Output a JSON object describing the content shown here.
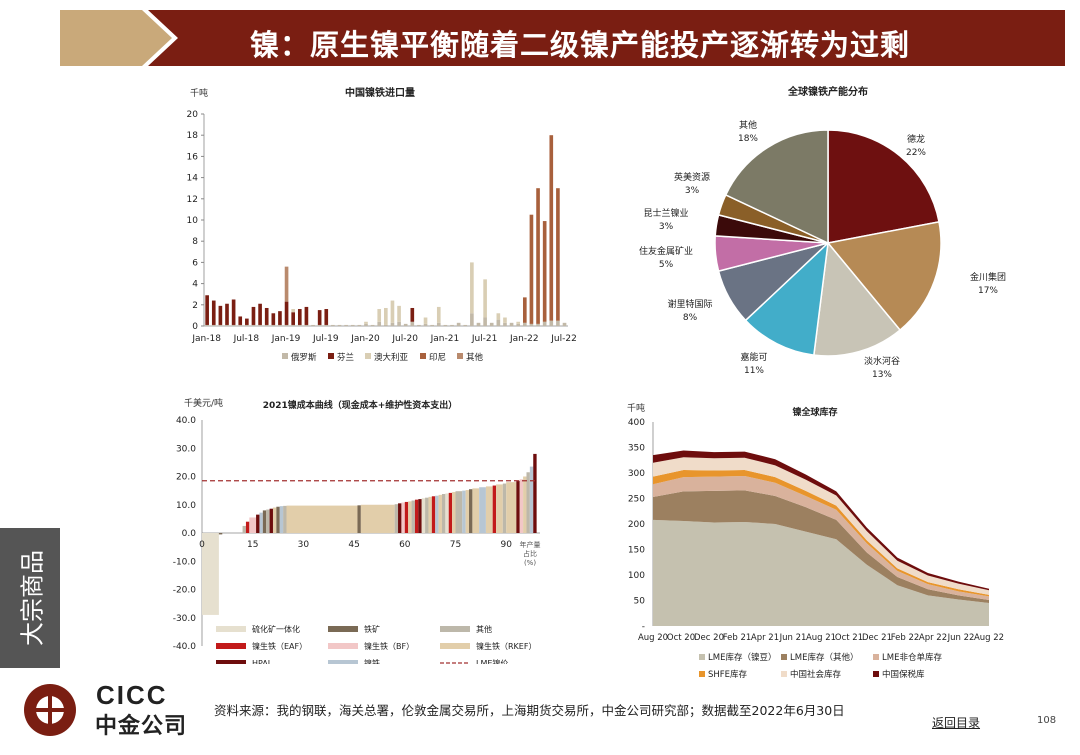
{
  "header": {
    "title": "镍：原生镍平衡随着二级镍产能投产逐渐转为过剩",
    "colors": {
      "bar": "#7a1e12",
      "arrow": "#c9a97a"
    }
  },
  "side_label": "大宗商品",
  "logo": {
    "en": "CICC",
    "cn": "中金公司"
  },
  "footer": {
    "source": "资料来源：我的钢联，海关总署，伦敦金属交易所，上海期货交易所，中金公司研究部；数据截至2022年6月30日",
    "back": "返回目录",
    "page": "108"
  },
  "chart_data": [
    {
      "type": "bar",
      "stacked": true,
      "title": "中国镍铁进口量",
      "ylabel": "千吨",
      "ylim": [
        0,
        20
      ],
      "yticks": [
        "0",
        "2",
        "4",
        "6",
        "8",
        "10",
        "12",
        "14",
        "16",
        "18",
        "20"
      ],
      "xticks": [
        "Jan-18",
        "Jul-18",
        "Jan-19",
        "Jul-19",
        "Jan-20",
        "Jul-20",
        "Jan-21",
        "Jul-21",
        "Jan-22",
        "Jul-22"
      ],
      "series": [
        {
          "name": "俄罗斯",
          "color": "#c2b9a8",
          "values": [
            0.1,
            0.1,
            0.1,
            0.1,
            0.1,
            0.1,
            0.1,
            0.1,
            0.1,
            0.1,
            0.1,
            0.1,
            0.1,
            0.1,
            0.1,
            0.1,
            0.1,
            0.1,
            0.1,
            0.1,
            0.1,
            0.1,
            0.1,
            0.1,
            0.2,
            0.1,
            0.4,
            0.1,
            0.3,
            0.4,
            0.2,
            0.4,
            0.1,
            0.2,
            0.1,
            0.3,
            0.1,
            0.1,
            0.3,
            0.1,
            1.2,
            0.3,
            0.8,
            0.3,
            0.6,
            0.3,
            0.3,
            0.2,
            0.3,
            0.2,
            0.2,
            0.4,
            0.5,
            0.5,
            0.3
          ]
        },
        {
          "name": "芬兰",
          "color": "#7a1e12",
          "values": [
            2.8,
            2.3,
            1.8,
            2.0,
            2.4,
            0.8,
            0.6,
            1.7,
            2.0,
            1.6,
            1.1,
            1.3,
            2.2,
            1.2,
            1.5,
            1.7,
            0.0,
            1.4,
            1.5,
            0.0,
            0.0,
            0.0,
            0.0,
            0.0,
            0.0,
            0.0,
            0.0,
            0.0,
            0.0,
            0.0,
            0.0,
            1.3,
            0.0,
            0.0,
            0.0,
            0.0,
            0.0,
            0.0,
            0.0,
            0.0,
            0.0,
            0.0,
            0.0,
            0.0,
            0.0,
            0.0,
            0.0,
            0.0,
            0.0,
            0.0,
            0.0,
            0.0,
            0.0,
            0.0,
            0.0
          ]
        },
        {
          "name": "澳大利亚",
          "color": "#d9ceb4",
          "values": [
            0.0,
            0.0,
            0.0,
            0.0,
            0.0,
            0.0,
            0.0,
            0.0,
            0.0,
            0.0,
            0.0,
            0.0,
            0.0,
            0.3,
            0.0,
            0.0,
            0.0,
            0.0,
            0.0,
            0.0,
            0.0,
            0.0,
            0.0,
            0.0,
            0.2,
            0.0,
            1.2,
            1.6,
            2.1,
            1.5,
            0.0,
            0.0,
            0.0,
            0.6,
            0.0,
            1.5,
            0.0,
            0.0,
            0.0,
            0.0,
            4.8,
            0.0,
            3.6,
            0.0,
            0.6,
            0.5,
            0.0,
            0.2,
            0.0,
            0.0,
            0.0,
            0.0,
            0.0,
            0.0,
            0.0
          ]
        },
        {
          "name": "印尼",
          "color": "#a8603c",
          "values": [
            0.0,
            0.0,
            0.0,
            0.0,
            0.0,
            0.0,
            0.0,
            0.0,
            0.0,
            0.0,
            0.0,
            0.0,
            0.0,
            0.0,
            0.0,
            0.0,
            0.0,
            0.0,
            0.0,
            0.0,
            0.0,
            0.0,
            0.0,
            0.0,
            0.0,
            0.0,
            0.0,
            0.0,
            0.0,
            0.0,
            0.0,
            0.0,
            0.0,
            0.0,
            0.0,
            0.0,
            0.0,
            0.0,
            0.0,
            0.0,
            0.0,
            0.0,
            0.0,
            0.0,
            0.0,
            0.0,
            0.0,
            0.0,
            2.4,
            10.3,
            12.8,
            9.5,
            17.5,
            12.5,
            0.0
          ]
        },
        {
          "name": "其他",
          "color": "#b98a6d",
          "values": [
            0.0,
            0.0,
            0.0,
            0.0,
            0.0,
            0.0,
            0.0,
            0.0,
            0.0,
            0.0,
            0.0,
            0.0,
            3.3,
            0.0,
            0.0,
            0.0,
            0.0,
            0.0,
            0.0,
            0.0,
            0.0,
            0.0,
            0.0,
            0.0,
            0.0,
            0.0,
            0.0,
            0.0,
            0.0,
            0.0,
            0.0,
            0.0,
            0.0,
            0.0,
            0.0,
            0.0,
            0.0,
            0.0,
            0.0,
            0.0,
            0.0,
            0.0,
            0.0,
            0.0,
            0.0,
            0.0,
            0.0,
            0.0,
            0.0,
            0.0,
            0.0,
            0.0,
            0.0,
            0.0,
            0.0
          ]
        }
      ]
    },
    {
      "type": "pie",
      "title": "全球镍铁产能分布",
      "slices": [
        {
          "name": "德龙",
          "value": 22,
          "label": "22%",
          "color": "#6e1010"
        },
        {
          "name": "金川集团",
          "value": 17,
          "label": "17%",
          "color": "#b68a55"
        },
        {
          "name": "淡水河谷",
          "value": 13,
          "label": "13%",
          "color": "#c8c4b6"
        },
        {
          "name": "嘉能可",
          "value": 11,
          "label": "11%",
          "color": "#42adc9"
        },
        {
          "name": "谢里特国际",
          "value": 8,
          "label": "8%",
          "color": "#6a7384"
        },
        {
          "name": "住友金属矿业",
          "value": 5,
          "label": "5%",
          "color": "#c26ea6"
        },
        {
          "name": "昆士兰镍业",
          "value": 3,
          "label": "3%",
          "color": "#3b0a0a"
        },
        {
          "name": "英美资源",
          "value": 3,
          "label": "3%",
          "color": "#8a5f28"
        },
        {
          "name": "其他",
          "value": 18,
          "label": "18%",
          "color": "#7c7a66"
        }
      ]
    },
    {
      "type": "bar",
      "title": "2021镍成本曲线（现金成本+维护性资本支出）",
      "ylabel": "千美元/吨",
      "ylim": [
        -40,
        40
      ],
      "yticks": [
        "-40.0",
        "-30.0",
        "-20.0",
        "-10.0",
        "0.0",
        "10.0",
        "20.0",
        "30.0",
        "40.0"
      ],
      "xticks": [
        "0",
        "15",
        "30",
        "45",
        "60",
        "75",
        "90"
      ],
      "xlabel": "年产量\n占比\n(%)",
      "lme_price": 18.5,
      "legend": [
        {
          "name": "硫化矿一体化",
          "color": "#e6e0cf",
          "kind": "box"
        },
        {
          "name": "铁矿",
          "color": "#7a6a55",
          "kind": "box"
        },
        {
          "name": "其他",
          "color": "#bdb8aa",
          "kind": "box"
        },
        {
          "name": "镍生铁（EAF）",
          "color": "#c21a1a",
          "kind": "box"
        },
        {
          "name": "镍生铁（BF）",
          "color": "#f2c7c7",
          "kind": "box"
        },
        {
          "name": "镍生铁（RKEF）",
          "color": "#e2ceaa",
          "kind": "box"
        },
        {
          "name": "HPAL",
          "color": "#6e0d0d",
          "kind": "box"
        },
        {
          "name": "镍铁",
          "color": "#b7c6d3",
          "kind": "box"
        },
        {
          "name": "LME镍价",
          "color": "#a23030",
          "kind": "dash"
        }
      ],
      "bars": [
        {
          "x0": 0,
          "x1": 5,
          "value": -29,
          "color": "#e6e0cf"
        },
        {
          "x0": 5,
          "x1": 6,
          "value": -0.5,
          "color": "#7a6a55"
        },
        {
          "x0": 12,
          "x1": 13,
          "value": 2.5,
          "color": "#bdb8aa"
        },
        {
          "x0": 13,
          "x1": 14,
          "value": 4.0,
          "color": "#c21a1a"
        },
        {
          "x0": 14,
          "x1": 16,
          "value": 5.5,
          "color": "#f2c7c7"
        },
        {
          "x0": 16,
          "x1": 17,
          "value": 6.5,
          "color": "#6e0d0d"
        },
        {
          "x0": 17,
          "x1": 18,
          "value": 7.2,
          "color": "#b7c6d3"
        },
        {
          "x0": 18,
          "x1": 19,
          "value": 8.0,
          "color": "#7a6a55"
        },
        {
          "x0": 19,
          "x1": 20,
          "value": 8.3,
          "color": "#bdb8aa"
        },
        {
          "x0": 20,
          "x1": 21,
          "value": 8.6,
          "color": "#6e0d0d"
        },
        {
          "x0": 21,
          "x1": 22,
          "value": 9.0,
          "color": "#e2ceaa"
        },
        {
          "x0": 22,
          "x1": 23,
          "value": 9.3,
          "color": "#7a6a55"
        },
        {
          "x0": 23,
          "x1": 24,
          "value": 9.5,
          "color": "#b7c6d3"
        },
        {
          "x0": 24,
          "x1": 25,
          "value": 9.6,
          "color": "#bdb8aa"
        },
        {
          "x0": 25,
          "x1": 46,
          "value": 9.7,
          "color": "#e2ceaa"
        },
        {
          "x0": 46,
          "x1": 47,
          "value": 9.8,
          "color": "#7a6a55"
        },
        {
          "x0": 47,
          "x1": 57,
          "value": 10.0,
          "color": "#e2ceaa"
        },
        {
          "x0": 57,
          "x1": 58,
          "value": 10.2,
          "color": "#bdb8aa"
        },
        {
          "x0": 58,
          "x1": 59,
          "value": 10.5,
          "color": "#6e0d0d"
        },
        {
          "x0": 59,
          "x1": 60,
          "value": 10.8,
          "color": "#f2c7c7"
        },
        {
          "x0": 60,
          "x1": 61,
          "value": 11.0,
          "color": "#c21a1a"
        },
        {
          "x0": 61,
          "x1": 62,
          "value": 11.2,
          "color": "#e2ceaa"
        },
        {
          "x0": 62,
          "x1": 63,
          "value": 11.5,
          "color": "#bdb8aa"
        },
        {
          "x0": 63,
          "x1": 64,
          "value": 11.8,
          "color": "#c21a1a"
        },
        {
          "x0": 64,
          "x1": 65,
          "value": 12.0,
          "color": "#6e0d0d"
        },
        {
          "x0": 65,
          "x1": 66,
          "value": 12.3,
          "color": "#e6e0cf"
        },
        {
          "x0": 66,
          "x1": 67,
          "value": 12.5,
          "color": "#bdb8aa"
        },
        {
          "x0": 67,
          "x1": 68,
          "value": 12.8,
          "color": "#e2ceaa"
        },
        {
          "x0": 68,
          "x1": 69,
          "value": 13.0,
          "color": "#c21a1a"
        },
        {
          "x0": 69,
          "x1": 70,
          "value": 13.2,
          "color": "#b7c6d3"
        },
        {
          "x0": 70,
          "x1": 71,
          "value": 13.5,
          "color": "#e2ceaa"
        },
        {
          "x0": 71,
          "x1": 72,
          "value": 13.8,
          "color": "#bdb8aa"
        },
        {
          "x0": 72,
          "x1": 73,
          "value": 14.0,
          "color": "#e6e0cf"
        },
        {
          "x0": 73,
          "x1": 74,
          "value": 14.2,
          "color": "#c21a1a"
        },
        {
          "x0": 74,
          "x1": 75,
          "value": 14.5,
          "color": "#e2ceaa"
        },
        {
          "x0": 75,
          "x1": 77,
          "value": 14.8,
          "color": "#bdb8aa"
        },
        {
          "x0": 77,
          "x1": 78,
          "value": 15.0,
          "color": "#b7c6d3"
        },
        {
          "x0": 78,
          "x1": 79,
          "value": 15.2,
          "color": "#e2ceaa"
        },
        {
          "x0": 79,
          "x1": 80,
          "value": 15.5,
          "color": "#7a6a55"
        },
        {
          "x0": 80,
          "x1": 82,
          "value": 15.8,
          "color": "#e2ceaa"
        },
        {
          "x0": 82,
          "x1": 84,
          "value": 16.2,
          "color": "#b7c6d3"
        },
        {
          "x0": 84,
          "x1": 86,
          "value": 16.5,
          "color": "#e2ceaa"
        },
        {
          "x0": 86,
          "x1": 87,
          "value": 16.8,
          "color": "#c21a1a"
        },
        {
          "x0": 87,
          "x1": 89,
          "value": 17.2,
          "color": "#e2ceaa"
        },
        {
          "x0": 89,
          "x1": 90,
          "value": 17.5,
          "color": "#bdb8aa"
        },
        {
          "x0": 90,
          "x1": 93,
          "value": 18.0,
          "color": "#e2ceaa"
        },
        {
          "x0": 93,
          "x1": 94,
          "value": 18.5,
          "color": "#6e0d0d"
        },
        {
          "x0": 94,
          "x1": 95,
          "value": 19.0,
          "color": "#f2c7c7"
        },
        {
          "x0": 95,
          "x1": 96,
          "value": 20.0,
          "color": "#e2ceaa"
        },
        {
          "x0": 96,
          "x1": 97,
          "value": 21.5,
          "color": "#bdb8aa"
        },
        {
          "x0": 97,
          "x1": 98,
          "value": 23.5,
          "color": "#b7c6d3"
        },
        {
          "x0": 98,
          "x1": 99,
          "value": 28.0,
          "color": "#6e0d0d"
        }
      ]
    },
    {
      "type": "area",
      "stacked": true,
      "title": "镍全球库存",
      "ylabel": "千吨",
      "ylim": [
        0,
        400
      ],
      "yticks": [
        "-",
        "50",
        "100",
        "150",
        "200",
        "250",
        "300",
        "350",
        "400"
      ],
      "xticks": [
        "Aug 20",
        "Oct 20",
        "Dec 20",
        "Feb 21",
        "Apr 21",
        "Jun 21",
        "Aug 21",
        "Oct 21",
        "Dec 21",
        "Feb 22",
        "Apr 22",
        "Jun 22",
        "Aug 22"
      ],
      "x": [
        "Aug 20",
        "Oct 20",
        "Dec 20",
        "Feb 21",
        "Apr 21",
        "Jun 21",
        "Aug 21",
        "Oct 21",
        "Dec 21",
        "Feb 22",
        "Apr 22",
        "Jun 22"
      ],
      "series": [
        {
          "name": "LME库存（镍豆）",
          "color": "#c5c1af",
          "values": [
            208,
            206,
            203,
            204,
            200,
            185,
            170,
            120,
            80,
            60,
            52,
            45
          ]
        },
        {
          "name": "LME库存（其他）",
          "color": "#9c8060",
          "values": [
            45,
            58,
            62,
            62,
            55,
            48,
            38,
            24,
            16,
            12,
            8,
            6
          ]
        },
        {
          "name": "LME非仓单库存",
          "color": "#d9b29c",
          "values": [
            25,
            28,
            28,
            28,
            26,
            22,
            20,
            18,
            12,
            10,
            8,
            7
          ]
        },
        {
          "name": "SHFE库存",
          "color": "#e8952c",
          "values": [
            15,
            14,
            12,
            12,
            11,
            10,
            8,
            6,
            5,
            4,
            4,
            3
          ]
        },
        {
          "name": "中国社会库存",
          "color": "#f0dcc9",
          "values": [
            27,
            25,
            24,
            24,
            23,
            22,
            20,
            18,
            15,
            13,
            11,
            9
          ]
        },
        {
          "name": "中国保税库",
          "color": "#6e0d0d",
          "values": [
            15,
            13,
            12,
            12,
            12,
            10,
            8,
            7,
            6,
            5,
            4,
            3
          ]
        }
      ]
    }
  ]
}
